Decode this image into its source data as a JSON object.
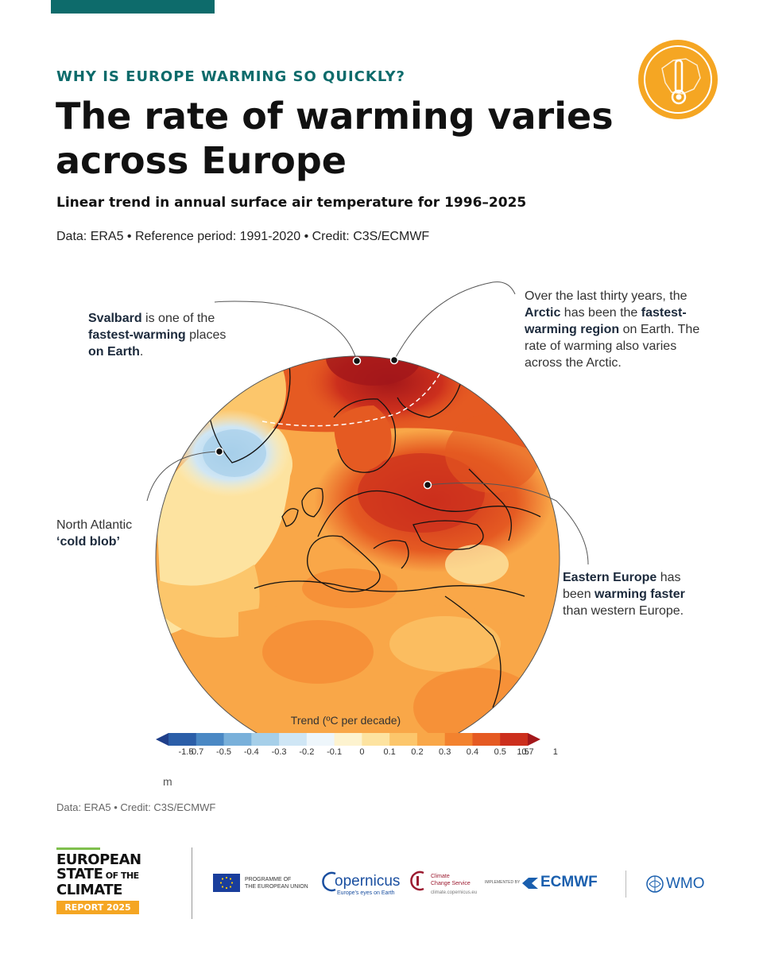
{
  "header": {
    "kicker": "WHY IS EUROPE WARMING SO QUICKLY?",
    "title": "The rate of warming varies across Europe",
    "subtitle": "Linear trend in annual surface air temperature for 1996–2025",
    "credits": "Data: ERA5 • Reference period: 1991-2020 • Credit: C3S/ECMWF"
  },
  "badge": {
    "icon": "thermometer-europe-icon",
    "color": "#f5a623"
  },
  "callouts": {
    "svalbard": {
      "p1": "Svalbard",
      "p2": " is one of the ",
      "p3": "fastest-warming",
      "p4": " places ",
      "p5": "on Earth",
      "p6": "."
    },
    "arctic": {
      "p1": "Over the last thirty years, the ",
      "p2": "Arctic",
      "p3": " has been the ",
      "p4": "fastest-warming region",
      "p5": " on Earth. The rate of warming also varies across the Arctic."
    },
    "atlantic": {
      "p1": "North Atlantic ",
      "p2": "‘cold blob’"
    },
    "eastern": {
      "p1": "Eastern Europe",
      "p2": " has been ",
      "p3": "warming faster",
      "p4": " than western Europe."
    }
  },
  "legend": {
    "title": "Trend (ºC per decade)",
    "labels": [
      "-1.5",
      "-0.7",
      "-0.5",
      "-0.4",
      "-0.3",
      "-0.2",
      "-0.1",
      "0",
      "0.1",
      "0.2",
      "0.3",
      "0.4",
      "0.5",
      "0.7",
      "1",
      "1.5"
    ],
    "colors": [
      "#1f3f8a",
      "#2b5ea8",
      "#4a88c4",
      "#79b0da",
      "#a6cfe9",
      "#cfe6f5",
      "#eef6fb",
      "#fdf3cf",
      "#fde3a0",
      "#fcc66b",
      "#f9a748",
      "#f3822e",
      "#e55a22",
      "#cc2f1d",
      "#a3171a"
    ]
  },
  "unit_note": "m",
  "data_credit": "Data: ERA5 • Credit: C3S/ECMWF",
  "footer": {
    "report": {
      "l1": "EUROPEAN",
      "l2a": "STATE",
      "l2b": " OF THE",
      "l3": "CLIMATE",
      "tag": "REPORT 2025"
    },
    "eu": {
      "l1": "PROGRAMME OF",
      "l2": "THE EUROPEAN UNION"
    },
    "copernicus": {
      "name": "opernicus",
      "tag": "Europe's eyes on Earth"
    },
    "c3s": {
      "l1": "Climate",
      "l2": "Change Service",
      "url": "climate.copernicus.eu"
    },
    "ecmwf": {
      "pre": "IMPLEMENTED BY",
      "name": "ECMWF"
    },
    "wmo": {
      "name": "WMO"
    }
  }
}
